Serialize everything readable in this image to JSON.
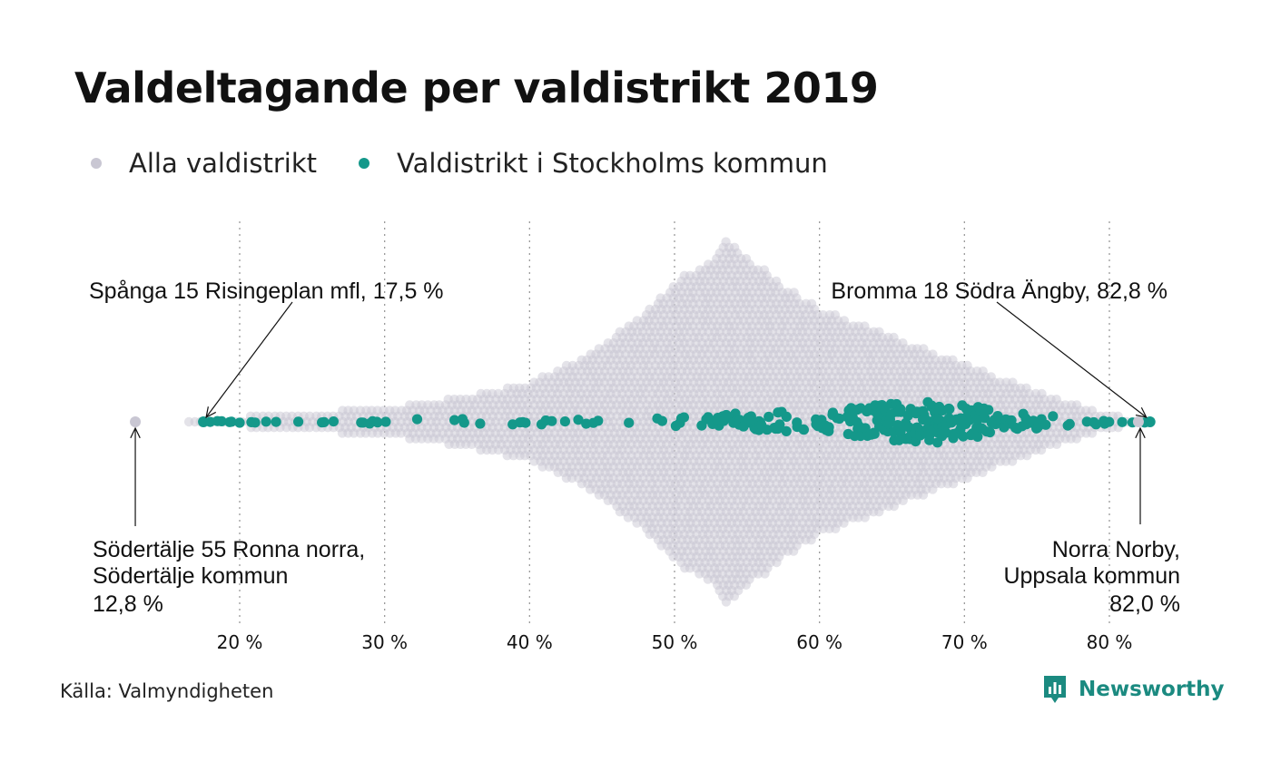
{
  "title": "Valdeltagande per valdistrikt 2019",
  "legend": [
    {
      "label": "Alla valdistrikt",
      "color": "#c9c7d3"
    },
    {
      "label": "Valdistrikt i Stockholms kommun",
      "color": "#14988a"
    }
  ],
  "source": "Källa: Valmyndigheten",
  "brand": "Newsworthy",
  "colors": {
    "all": "#c9c7d3",
    "stockholm": "#14988a",
    "grid": "#9a9a9a",
    "brand": "#1b8a80"
  },
  "annotations": {
    "min_stockholm": "Spånga 15 Risingeplan mfl, 17,5 %",
    "max_stockholm": "Bromma 18 Södra Ängby, 82,8 %",
    "min_all": [
      "Södertälje 55 Ronna norra,",
      "Södertälje kommun",
      "12,8 %"
    ],
    "max_all": [
      "Norra Norby,",
      "Uppsala kommun",
      "82,0 %"
    ]
  },
  "chart_data": {
    "type": "scatter",
    "subtype": "beeswarm",
    "xlim": [
      12,
      84
    ],
    "x_ticks": [
      20,
      30,
      40,
      50,
      60,
      70,
      80
    ],
    "x_tick_labels": [
      "20 %",
      "30 %",
      "40 %",
      "50 %",
      "60 %",
      "70 %",
      "80 %"
    ],
    "grid": "vertical dotted",
    "legend_position": "top-left",
    "series": [
      {
        "name": "Alla valdistrikt",
        "distribution": {
          "min": 12.8,
          "max": 82.0,
          "most_dense_around": [
            50,
            56
          ],
          "profile_x": [
            16,
            20,
            25,
            30,
            35,
            40,
            45,
            48,
            50,
            52,
            53.5,
            55,
            58,
            60,
            62,
            65,
            68,
            70,
            72,
            75,
            78,
            80,
            82
          ],
          "profile_relative_density": [
            0.01,
            0.03,
            0.05,
            0.08,
            0.13,
            0.22,
            0.42,
            0.62,
            0.78,
            0.86,
            1.0,
            0.9,
            0.72,
            0.62,
            0.56,
            0.47,
            0.37,
            0.32,
            0.25,
            0.17,
            0.08,
            0.04,
            0.01
          ]
        },
        "extremes": [
          {
            "label": "Södertälje 55 Ronna norra, Södertälje kommun",
            "value": 12.8
          },
          {
            "label": "Norra Norby, Uppsala kommun",
            "value": 82.0
          }
        ]
      },
      {
        "name": "Valdistrikt i Stockholms kommun",
        "distribution": {
          "min": 17.5,
          "max": 82.8,
          "most_dense_around": [
            66,
            70
          ],
          "profile_x": [
            17.5,
            20,
            25,
            30,
            35,
            40,
            45,
            50,
            55,
            60,
            63,
            66,
            68,
            70,
            72,
            75,
            78,
            80,
            82.8
          ],
          "profile_relative_density": [
            0.05,
            0.07,
            0.1,
            0.11,
            0.13,
            0.14,
            0.16,
            0.25,
            0.4,
            0.55,
            0.68,
            0.92,
            1.0,
            0.82,
            0.55,
            0.32,
            0.18,
            0.1,
            0.05
          ]
        },
        "extremes": [
          {
            "label": "Spånga 15 Risingeplan mfl",
            "value": 17.5
          },
          {
            "label": "Bromma 18 Södra Ängby",
            "value": 82.8
          }
        ]
      }
    ]
  }
}
